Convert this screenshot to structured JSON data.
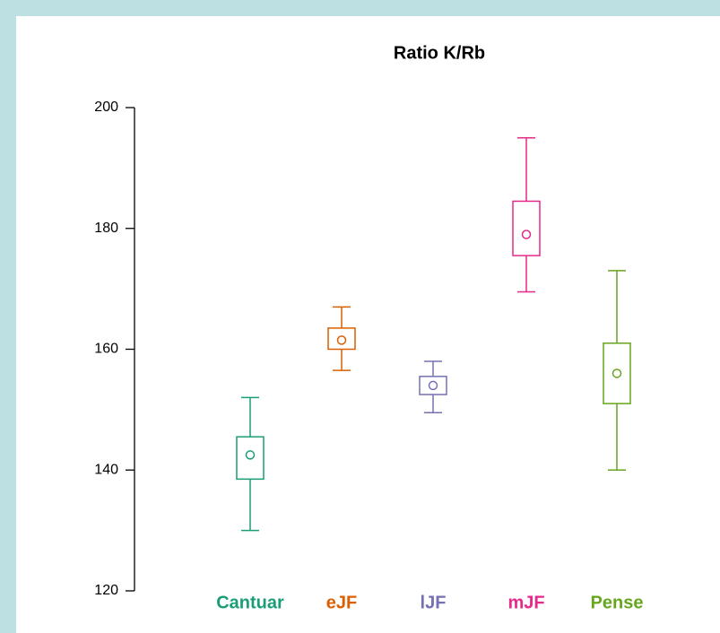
{
  "chart_data": {
    "type": "box",
    "title": "Ratio K/Rb",
    "categories": [
      "Cantuar",
      "eJF",
      "lJF",
      "mJF",
      "Pense"
    ],
    "colors": [
      "#1b9e77",
      "#d95f02",
      "#7570b3",
      "#e7298a",
      "#66a61e"
    ],
    "boxes": [
      {
        "whisker_low": 130,
        "box_low": 138.5,
        "mean": 142.5,
        "box_high": 145.5,
        "whisker_high": 152
      },
      {
        "whisker_low": 156.5,
        "box_low": 160,
        "mean": 161.5,
        "box_high": 163.5,
        "whisker_high": 167
      },
      {
        "whisker_low": 149.5,
        "box_low": 152.5,
        "mean": 154,
        "box_high": 155.5,
        "whisker_high": 158
      },
      {
        "whisker_low": 169.5,
        "box_low": 175.5,
        "mean": 179,
        "box_high": 184.5,
        "whisker_high": 195
      },
      {
        "whisker_low": 140,
        "box_low": 151,
        "mean": 156,
        "box_high": 161,
        "whisker_high": 173
      }
    ],
    "ylim": [
      120,
      200
    ],
    "yticks": [
      120,
      140,
      160,
      180,
      200
    ],
    "grid": false
  }
}
